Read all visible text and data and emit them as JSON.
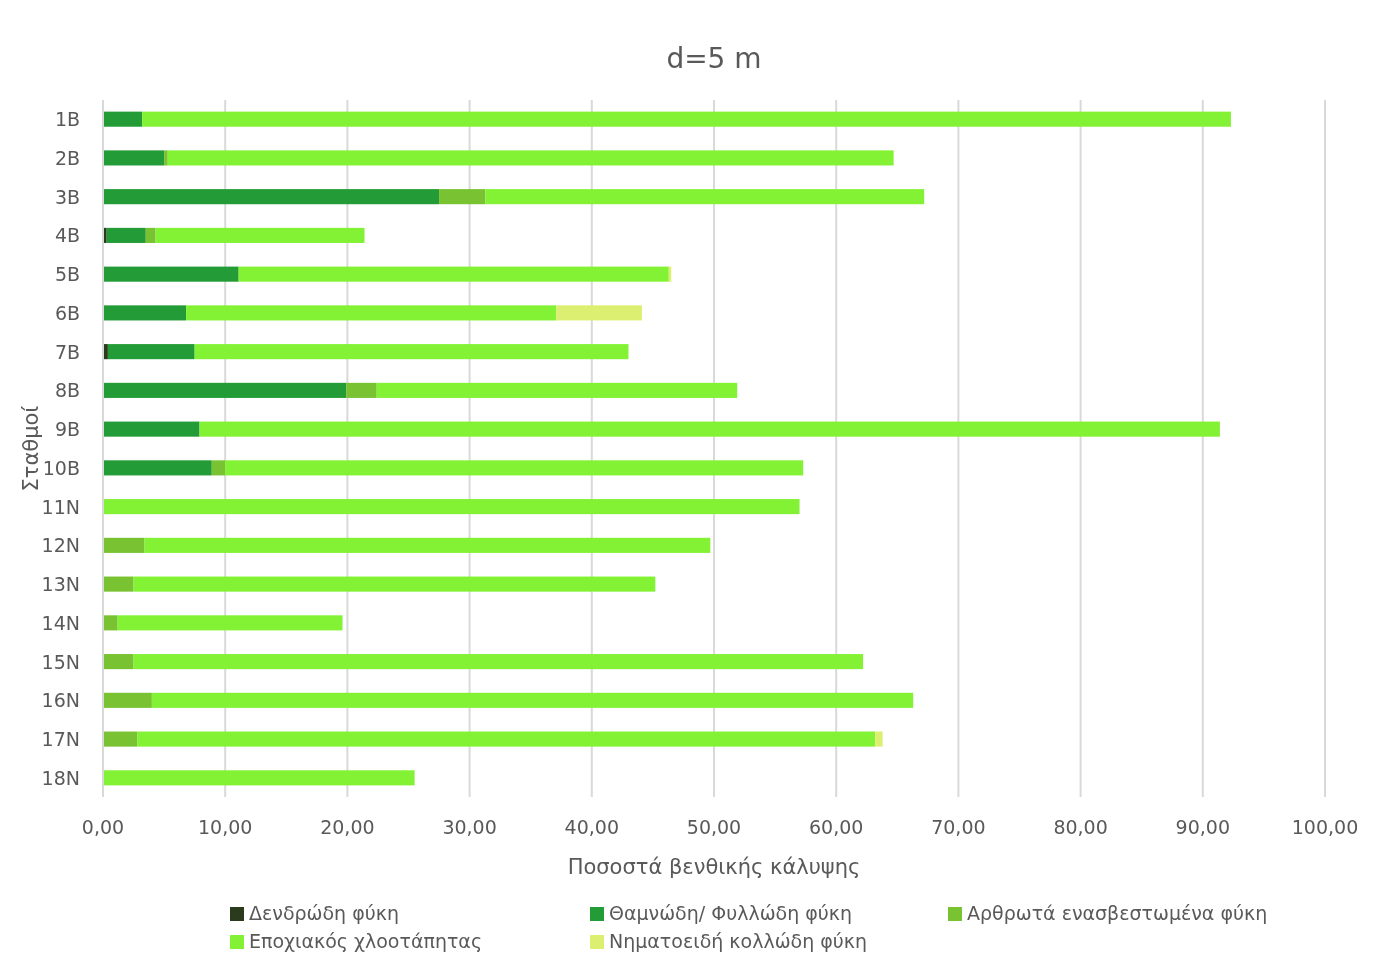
{
  "chart_data": {
    "type": "bar",
    "orientation": "horizontal",
    "stacked": true,
    "title": "d=5 m",
    "xlabel": "Ποσοστά βενθικής κάλυψης",
    "ylabel": "Σταθμοί",
    "categories": [
      "1B",
      "2B",
      "3B",
      "4B",
      "5B",
      "6B",
      "7B",
      "8B",
      "9B",
      "10B",
      "11N",
      "12N",
      "13N",
      "14N",
      "15N",
      "16N",
      "17N",
      "18N"
    ],
    "series": [
      {
        "name": "Δενδρώδη φύκη",
        "color": "#2a3b1e",
        "values": [
          0,
          0,
          0,
          0.3,
          0,
          0,
          0.4,
          0,
          0,
          0,
          0,
          0,
          0,
          0,
          0,
          0,
          0,
          0
        ]
      },
      {
        "name": "Θαμνώδη/ Φυλλώδη φύκη",
        "color": "#239c37",
        "values": [
          3.2,
          5.0,
          27.5,
          3.2,
          11.1,
          6.8,
          7.1,
          19.9,
          7.9,
          8.9,
          0,
          0,
          0,
          null,
          0,
          0,
          0,
          0
        ]
      },
      {
        "name": "Αρθρωτά ενασβεστωμένα φύκη",
        "color": "#79c332",
        "values": [
          0,
          0.3,
          3.8,
          0.8,
          null,
          0,
          0,
          2.5,
          0,
          1.1,
          null,
          3.4,
          2.5,
          1.2,
          2.5,
          4.0,
          2.8,
          0
        ]
      },
      {
        "name": "Εποχιακός χλοοτάπητας",
        "color": "#83f234",
        "values": [
          89.1,
          59.4,
          35.9,
          17.1,
          35.2,
          30.3,
          35.5,
          29.5,
          83.5,
          47.3,
          57.0,
          46.3,
          42.7,
          18.4,
          59.7,
          62.3,
          60.4,
          25.5
        ]
      },
      {
        "name": "Νηματοειδή κολλώδη φύκη",
        "color": "#dcef70",
        "values": [
          0,
          0,
          0,
          0,
          0.2,
          7.0,
          0,
          0,
          0,
          0,
          0,
          0,
          0,
          0,
          0,
          0,
          0.6,
          0
        ]
      }
    ],
    "xlim": [
      0,
      100
    ],
    "xticks": [
      {
        "value": 0,
        "label": "0,00"
      },
      {
        "value": 10,
        "label": "10,00"
      },
      {
        "value": 20,
        "label": "20,00"
      },
      {
        "value": 30,
        "label": "30,00"
      },
      {
        "value": 40,
        "label": "40,00"
      },
      {
        "value": 50,
        "label": "50,00"
      },
      {
        "value": 60,
        "label": "60,00"
      },
      {
        "value": 70,
        "label": "70,00"
      },
      {
        "value": 80,
        "label": "80,00"
      },
      {
        "value": 90,
        "label": "90,00"
      },
      {
        "value": 100,
        "label": "100,00"
      }
    ],
    "grid": "x",
    "legend": "bottom"
  }
}
